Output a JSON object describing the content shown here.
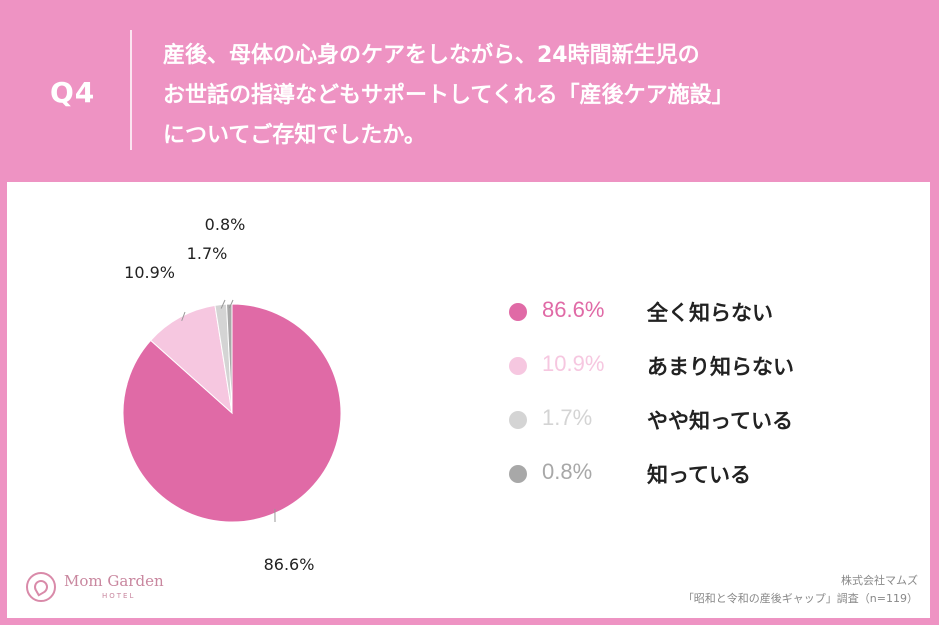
{
  "header": {
    "q_label": "Q4",
    "question_lines": [
      "産後、母体の心身のケアをしながら、24時間新生児の",
      "お世話の指導などもサポートしてくれる「産後ケア施設」",
      "についてご存知でしたか。"
    ]
  },
  "chart_data": {
    "type": "pie",
    "labels": [
      "全く知らない",
      "あまり知らない",
      "やや知っている",
      "知っている"
    ],
    "values": [
      86.6,
      10.9,
      1.7,
      0.8
    ],
    "value_labels": [
      "86.6%",
      "10.9%",
      "1.7%",
      "0.8%"
    ],
    "colors": [
      "#e06aa6",
      "#f6c7e0",
      "#d4d4d4",
      "#a8a8a8"
    ],
    "start": "12 o'clock",
    "direction": "clockwise",
    "legend_placement": "right"
  },
  "legend": [
    {
      "pct": "86.6%",
      "label": "全く知らない",
      "color": "#e06aa6"
    },
    {
      "pct": "10.9%",
      "label": "あまり知らない",
      "color": "#f6c7e0"
    },
    {
      "pct": "1.7%",
      "label": "やや知っている",
      "color": "#d4d4d4"
    },
    {
      "pct": "0.8%",
      "label": "知っている",
      "color": "#a8a8a8"
    }
  ],
  "logo": {
    "name": "Mom Garden",
    "sub": "HOTEL"
  },
  "credit": {
    "line1": "株式会社マムズ",
    "line2": "「昭和と令和の産後ギャップ」調査（n=119）"
  }
}
